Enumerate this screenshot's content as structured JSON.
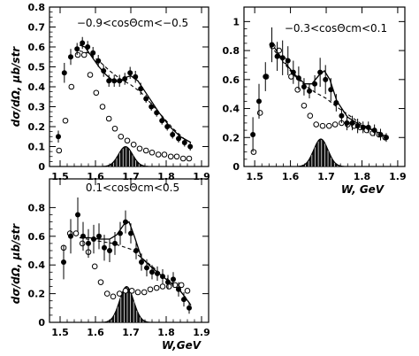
{
  "figure": {
    "ylabel": "dσ/dΩ, μb/str",
    "xlabel_right": "W, GeV",
    "xlabel_bottom": "W,GeV"
  },
  "chart_data": [
    {
      "type": "scatter",
      "panel": "top-left",
      "title": "−0.9<cosΘcm<−0.5",
      "xlim": [
        1.47,
        1.92
      ],
      "ylim": [
        0,
        0.8
      ],
      "xticks": [
        "1.5",
        "1.6",
        "1.7",
        "1.8",
        "1.9"
      ],
      "yticks": [
        "0",
        "0.1",
        "0.2",
        "0.3",
        "0.4",
        "0.5",
        "0.6",
        "0.7",
        "0.8"
      ],
      "filled_points": {
        "x": [
          1.495,
          1.512,
          1.53,
          1.548,
          1.563,
          1.578,
          1.593,
          1.608,
          1.623,
          1.638,
          1.653,
          1.668,
          1.683,
          1.698,
          1.713,
          1.728,
          1.743,
          1.758,
          1.773,
          1.788,
          1.803,
          1.818,
          1.835,
          1.852,
          1.868
        ],
        "y": [
          0.15,
          0.47,
          0.55,
          0.59,
          0.62,
          0.6,
          0.57,
          0.53,
          0.48,
          0.43,
          0.43,
          0.43,
          0.44,
          0.47,
          0.45,
          0.39,
          0.34,
          0.3,
          0.27,
          0.23,
          0.2,
          0.16,
          0.14,
          0.12,
          0.1
        ],
        "err": [
          0.03,
          0.05,
          0.04,
          0.03,
          0.03,
          0.03,
          0.03,
          0.03,
          0.03,
          0.03,
          0.03,
          0.03,
          0.03,
          0.03,
          0.03,
          0.03,
          0.02,
          0.02,
          0.02,
          0.02,
          0.02,
          0.02,
          0.02,
          0.02,
          0.02
        ]
      },
      "open_points": {
        "x": [
          1.497,
          1.515,
          1.532,
          1.55,
          1.568,
          1.585,
          1.602,
          1.62,
          1.638,
          1.655,
          1.672,
          1.69,
          1.708,
          1.725,
          1.743,
          1.76,
          1.778,
          1.795,
          1.813,
          1.83,
          1.848,
          1.865
        ],
        "y": [
          0.08,
          0.23,
          0.4,
          0.56,
          0.56,
          0.46,
          0.37,
          0.3,
          0.24,
          0.19,
          0.15,
          0.13,
          0.11,
          0.09,
          0.08,
          0.07,
          0.06,
          0.06,
          0.05,
          0.05,
          0.04,
          0.04
        ]
      },
      "solid_curve": {
        "x": [
          1.555,
          1.57,
          1.59,
          1.61,
          1.63,
          1.65,
          1.67,
          1.69,
          1.7,
          1.72,
          1.75,
          1.78,
          1.81,
          1.84,
          1.87
        ],
        "y": [
          0.61,
          0.6,
          0.55,
          0.5,
          0.46,
          0.43,
          0.425,
          0.45,
          0.455,
          0.43,
          0.35,
          0.27,
          0.2,
          0.15,
          0.12
        ]
      },
      "dashed_curve": {
        "x": [
          1.555,
          1.58,
          1.61,
          1.64,
          1.67,
          1.7,
          1.73,
          1.76,
          1.79,
          1.82,
          1.85,
          1.87
        ],
        "y": [
          0.58,
          0.57,
          0.53,
          0.48,
          0.44,
          0.41,
          0.37,
          0.31,
          0.25,
          0.19,
          0.14,
          0.12
        ]
      },
      "peak": {
        "center": 1.685,
        "sigma": 0.02,
        "height": 0.1
      }
    },
    {
      "type": "scatter",
      "panel": "top-right",
      "title": "−0.3<cosΘcm<0.1",
      "xlim": [
        1.47,
        1.92
      ],
      "ylim": [
        0,
        1.1
      ],
      "xticks": [
        "1.5",
        "1.6",
        "1.7",
        "1.8",
        "1.9"
      ],
      "yticks": [
        "0",
        "0.2",
        "0.4",
        "0.6",
        "0.8",
        "1"
      ],
      "filled_points": {
        "x": [
          1.495,
          1.512,
          1.53,
          1.548,
          1.563,
          1.578,
          1.593,
          1.608,
          1.623,
          1.638,
          1.653,
          1.668,
          1.683,
          1.698,
          1.713,
          1.728,
          1.743,
          1.758,
          1.773,
          1.788,
          1.803,
          1.818,
          1.835,
          1.852,
          1.868
        ],
        "y": [
          0.22,
          0.45,
          0.62,
          0.84,
          0.76,
          0.75,
          0.73,
          0.65,
          0.61,
          0.55,
          0.52,
          0.57,
          0.65,
          0.6,
          0.53,
          0.44,
          0.35,
          0.3,
          0.3,
          0.28,
          0.27,
          0.27,
          0.25,
          0.22,
          0.2
        ],
        "err": [
          0.12,
          0.12,
          0.1,
          0.12,
          0.1,
          0.12,
          0.1,
          0.08,
          0.08,
          0.06,
          0.05,
          0.06,
          0.1,
          0.1,
          0.08,
          0.06,
          0.05,
          0.05,
          0.05,
          0.05,
          0.04,
          0.04,
          0.04,
          0.04,
          0.03
        ]
      },
      "open_points": {
        "x": [
          1.497,
          1.515,
          1.532,
          1.55,
          1.568,
          1.585,
          1.602,
          1.62,
          1.638,
          1.655,
          1.672,
          1.69,
          1.708,
          1.725,
          1.743,
          1.76,
          1.778,
          1.795,
          1.813,
          1.83,
          1.848,
          1.865
        ],
        "y": [
          0.1,
          0.37,
          0.62,
          0.83,
          0.8,
          0.73,
          0.62,
          0.53,
          0.42,
          0.35,
          0.29,
          0.28,
          0.28,
          0.29,
          0.3,
          0.29,
          0.28,
          0.27,
          0.25,
          0.23,
          0.22,
          0.2
        ]
      },
      "solid_curve": {
        "x": [
          1.555,
          1.58,
          1.61,
          1.64,
          1.66,
          1.68,
          1.695,
          1.71,
          1.73,
          1.76,
          1.8,
          1.84,
          1.87
        ],
        "y": [
          0.82,
          0.73,
          0.64,
          0.57,
          0.57,
          0.63,
          0.66,
          0.6,
          0.45,
          0.34,
          0.28,
          0.24,
          0.2
        ]
      },
      "dashed_curve": {
        "x": [
          1.555,
          1.58,
          1.61,
          1.64,
          1.67,
          1.7,
          1.73,
          1.76,
          1.8,
          1.84,
          1.87
        ],
        "y": [
          0.8,
          0.72,
          0.63,
          0.56,
          0.51,
          0.47,
          0.41,
          0.36,
          0.29,
          0.24,
          0.2
        ]
      },
      "peak": {
        "center": 1.685,
        "sigma": 0.02,
        "height": 0.19
      }
    },
    {
      "type": "scatter",
      "panel": "bottom-left",
      "title": "0.1<cosΘcm<0.5",
      "xlim": [
        1.47,
        1.92
      ],
      "ylim": [
        0,
        1.0
      ],
      "xticks": [
        "1.5",
        "1.6",
        "1.7",
        "1.8",
        "1.9"
      ],
      "yticks": [
        "0",
        "0.2",
        "0.4",
        "0.6",
        "0.8"
      ],
      "filled_points": {
        "x": [
          1.51,
          1.53,
          1.55,
          1.565,
          1.58,
          1.595,
          1.61,
          1.625,
          1.64,
          1.655,
          1.67,
          1.685,
          1.7,
          1.715,
          1.73,
          1.745,
          1.76,
          1.775,
          1.79,
          1.805,
          1.82,
          1.835,
          1.85,
          1.865
        ],
        "y": [
          0.42,
          0.6,
          0.75,
          0.6,
          0.55,
          0.58,
          0.6,
          0.52,
          0.5,
          0.55,
          0.62,
          0.7,
          0.62,
          0.5,
          0.42,
          0.38,
          0.35,
          0.34,
          0.32,
          0.28,
          0.3,
          0.23,
          0.16,
          0.1
        ],
        "err": [
          0.12,
          0.12,
          0.12,
          0.1,
          0.1,
          0.1,
          0.09,
          0.09,
          0.08,
          0.08,
          0.08,
          0.08,
          0.07,
          0.06,
          0.06,
          0.06,
          0.05,
          0.05,
          0.05,
          0.05,
          0.05,
          0.05,
          0.05,
          0.04
        ]
      },
      "open_points": {
        "x": [
          1.51,
          1.528,
          1.545,
          1.563,
          1.58,
          1.598,
          1.615,
          1.633,
          1.65,
          1.668,
          1.685,
          1.703,
          1.72,
          1.738,
          1.755,
          1.773,
          1.79,
          1.808,
          1.825,
          1.843,
          1.86
        ],
        "y": [
          0.52,
          0.62,
          0.62,
          0.55,
          0.49,
          0.39,
          0.28,
          0.2,
          0.18,
          0.2,
          0.22,
          0.22,
          0.21,
          0.21,
          0.23,
          0.24,
          0.25,
          0.25,
          0.26,
          0.26,
          0.22
        ]
      },
      "solid_curve": {
        "x": [
          1.555,
          1.58,
          1.61,
          1.64,
          1.66,
          1.68,
          1.695,
          1.71,
          1.73,
          1.76,
          1.8,
          1.84,
          1.87
        ],
        "y": [
          0.59,
          0.59,
          0.58,
          0.58,
          0.61,
          0.68,
          0.7,
          0.6,
          0.45,
          0.38,
          0.3,
          0.22,
          0.12
        ]
      },
      "dashed_curve": {
        "x": [
          1.555,
          1.6,
          1.65,
          1.7,
          1.74,
          1.78,
          1.82,
          1.85,
          1.87
        ],
        "y": [
          0.59,
          0.57,
          0.55,
          0.51,
          0.43,
          0.35,
          0.27,
          0.19,
          0.12
        ]
      },
      "peak": {
        "center": 1.688,
        "sigma": 0.02,
        "height": 0.25
      }
    }
  ]
}
